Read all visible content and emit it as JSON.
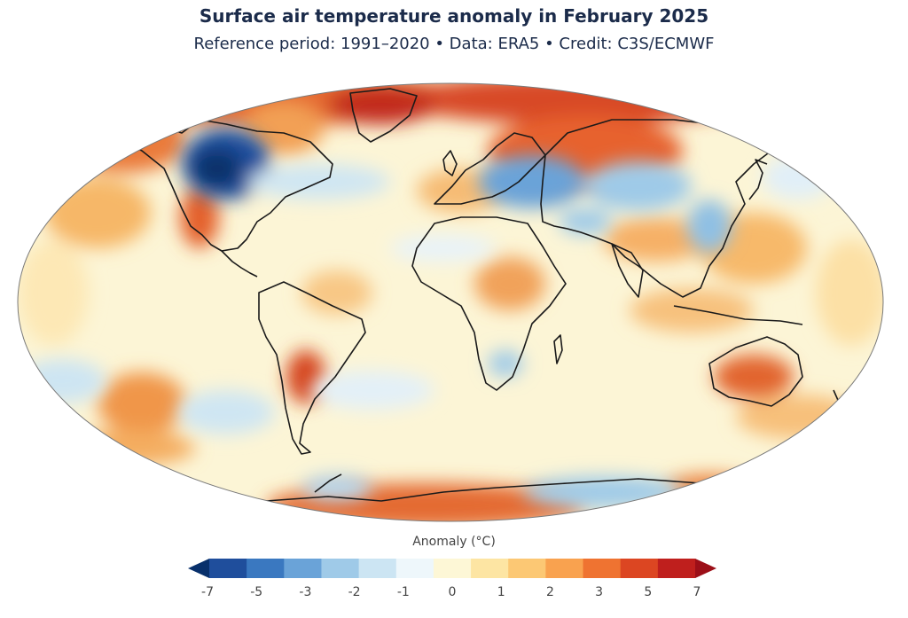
{
  "title": "Surface air temperature anomaly in February 2025",
  "subtitle": "Reference period: 1991–2020 • Data: ERA5 • Credit: C3S/ECMWF",
  "legend": {
    "title": "Anomaly (°C)",
    "tick_labels": [
      "-7",
      "-5",
      "-3",
      "-2",
      "-1",
      "0",
      "1",
      "2",
      "3",
      "5",
      "7"
    ],
    "bin_colors": [
      "#08306b",
      "#1f4e9c",
      "#3a78c0",
      "#6aa3d8",
      "#9fcae8",
      "#cce5f3",
      "#eef7fb",
      "#fdf7d6",
      "#fde5a3",
      "#fcc874",
      "#f9a24f",
      "#ef7331",
      "#dc4622",
      "#bf1f1d",
      "#9c0f18"
    ]
  },
  "colors": {
    "ocean_base": "#fcf5d6",
    "coast": "#1a1a1a",
    "outline": "#7a7a7a",
    "title_text": "#1b2b4a"
  }
}
